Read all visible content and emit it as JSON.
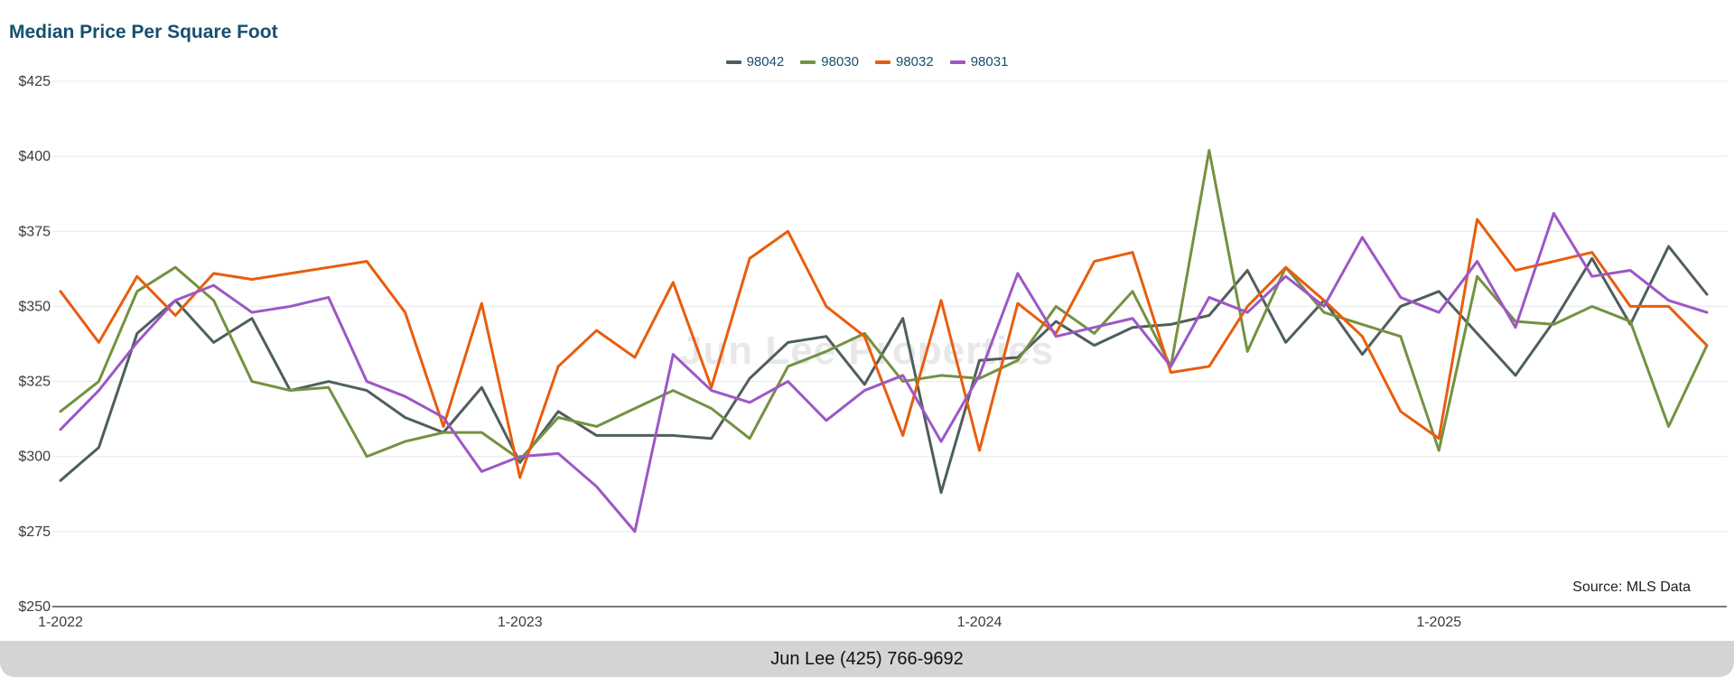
{
  "header": {
    "title": "Median Price Per Square Foot"
  },
  "source_note": "Source: MLS Data",
  "watermark": "Jun Lee Properties",
  "footer": {
    "contact": "Jun Lee (425) 766-9692"
  },
  "colors": {
    "title": "#16506e",
    "grid": "#e7e7e7",
    "axis": "#7a7a7a",
    "tick_text": "#3c3c3c",
    "footer_bg": "#d4d4d4"
  },
  "chart_data": {
    "type": "line",
    "title": "Median Price Per Square Foot",
    "ylabel": "",
    "xlabel": "",
    "ylim": [
      250,
      425
    ],
    "y_ticks": [
      250,
      275,
      300,
      325,
      350,
      375,
      400,
      425
    ],
    "y_tick_prefix": "$",
    "grid": "horizontal",
    "legend_position": "top-center",
    "months": 44,
    "x_start": "1-2022",
    "x_tick_labels": [
      "1-2022",
      "1-2023",
      "1-2024",
      "1-2025"
    ],
    "x_tick_positions": [
      0,
      12,
      24,
      36
    ],
    "series": [
      {
        "name": "98042",
        "color": "#4f5e5e",
        "values": [
          292,
          303,
          341,
          352,
          338,
          346,
          322,
          325,
          322,
          313,
          308,
          323,
          298,
          315,
          307,
          307,
          307,
          306,
          326,
          338,
          340,
          324,
          346,
          288,
          332,
          333,
          345,
          337,
          343,
          344,
          347,
          362,
          338,
          352,
          334,
          350,
          355,
          341,
          327,
          345,
          366,
          344,
          370,
          354
        ]
      },
      {
        "name": "98030",
        "color": "#739240",
        "values": [
          315,
          325,
          355,
          363,
          352,
          325,
          322,
          323,
          300,
          305,
          308,
          308,
          299,
          313,
          310,
          316,
          322,
          316,
          306,
          330,
          335,
          341,
          325,
          327,
          326,
          332,
          350,
          341,
          355,
          330,
          402,
          335,
          363,
          348,
          344,
          340,
          302,
          360,
          345,
          344,
          350,
          345,
          310,
          337
        ]
      },
      {
        "name": "98032",
        "color": "#e85d0d",
        "values": [
          355,
          338,
          360,
          347,
          361,
          359,
          361,
          363,
          365,
          348,
          310,
          351,
          293,
          330,
          342,
          333,
          358,
          323,
          366,
          375,
          350,
          340,
          307,
          352,
          302,
          351,
          341,
          365,
          368,
          328,
          330,
          350,
          363,
          352,
          340,
          315,
          306,
          379,
          362,
          365,
          368,
          350,
          350,
          337
        ]
      },
      {
        "name": "98031",
        "color": "#9d57c5",
        "values": [
          309,
          322,
          338,
          352,
          357,
          348,
          350,
          353,
          325,
          320,
          313,
          295,
          300,
          301,
          290,
          275,
          334,
          322,
          318,
          325,
          312,
          322,
          327,
          305,
          327,
          361,
          340,
          343,
          346,
          330,
          353,
          348,
          360,
          350,
          373,
          353,
          348,
          365,
          343,
          381,
          360,
          362,
          352,
          348
        ]
      }
    ]
  }
}
